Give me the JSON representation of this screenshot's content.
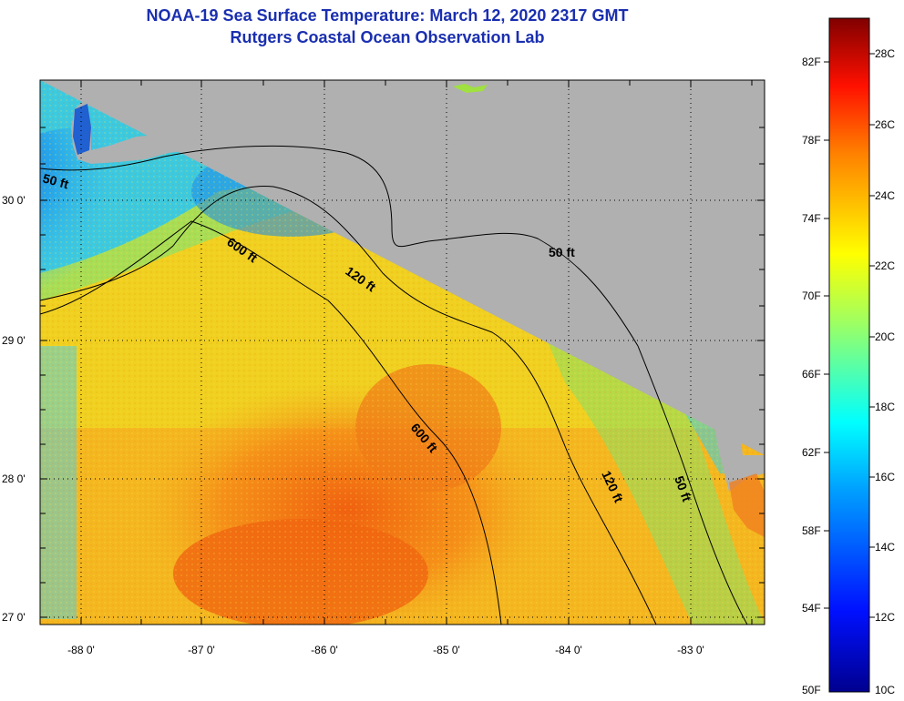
{
  "title_line1": "NOAA-19 Sea Surface Temperature:  March 12, 2020 2317 GMT",
  "title_line2": "Rutgers Coastal Ocean Observation Lab",
  "map": {
    "lat_ticks": [
      {
        "value": 30,
        "label": "30 0'"
      },
      {
        "value": 29,
        "label": "29 0'"
      },
      {
        "value": 28,
        "label": "28 0'"
      },
      {
        "value": 27,
        "label": "27 0'"
      }
    ],
    "lon_ticks": [
      {
        "value": -88,
        "label": "-88 0'"
      },
      {
        "value": -87,
        "label": "-87 0'"
      },
      {
        "value": -86,
        "label": "-86 0'"
      },
      {
        "value": -85,
        "label": "-85 0'"
      },
      {
        "value": -84,
        "label": "-84 0'"
      },
      {
        "value": -83,
        "label": "-83 0'"
      }
    ],
    "depth_contours": [
      {
        "label": "50 ft"
      },
      {
        "label": "120 ft"
      },
      {
        "label": "600 ft"
      }
    ],
    "depth_labels": [
      "50 ft",
      "600 ft",
      "120 ft",
      "50 ft",
      "600 ft",
      "120 ft",
      "50 ft"
    ],
    "colors": {
      "land": "#b0b0b0",
      "cool": "#1fb0f0",
      "warm": "#f5a020",
      "hot": "#f36a10"
    }
  },
  "colorbar": {
    "fahrenheit": [
      "82F",
      "78F",
      "74F",
      "70F",
      "66F",
      "62F",
      "58F",
      "54F",
      "50F"
    ],
    "celsius": [
      "28C",
      "26C",
      "24C",
      "22C",
      "20C",
      "18C",
      "16C",
      "14C",
      "12C",
      "10C"
    ],
    "min_c": 10,
    "max_c": 29
  }
}
